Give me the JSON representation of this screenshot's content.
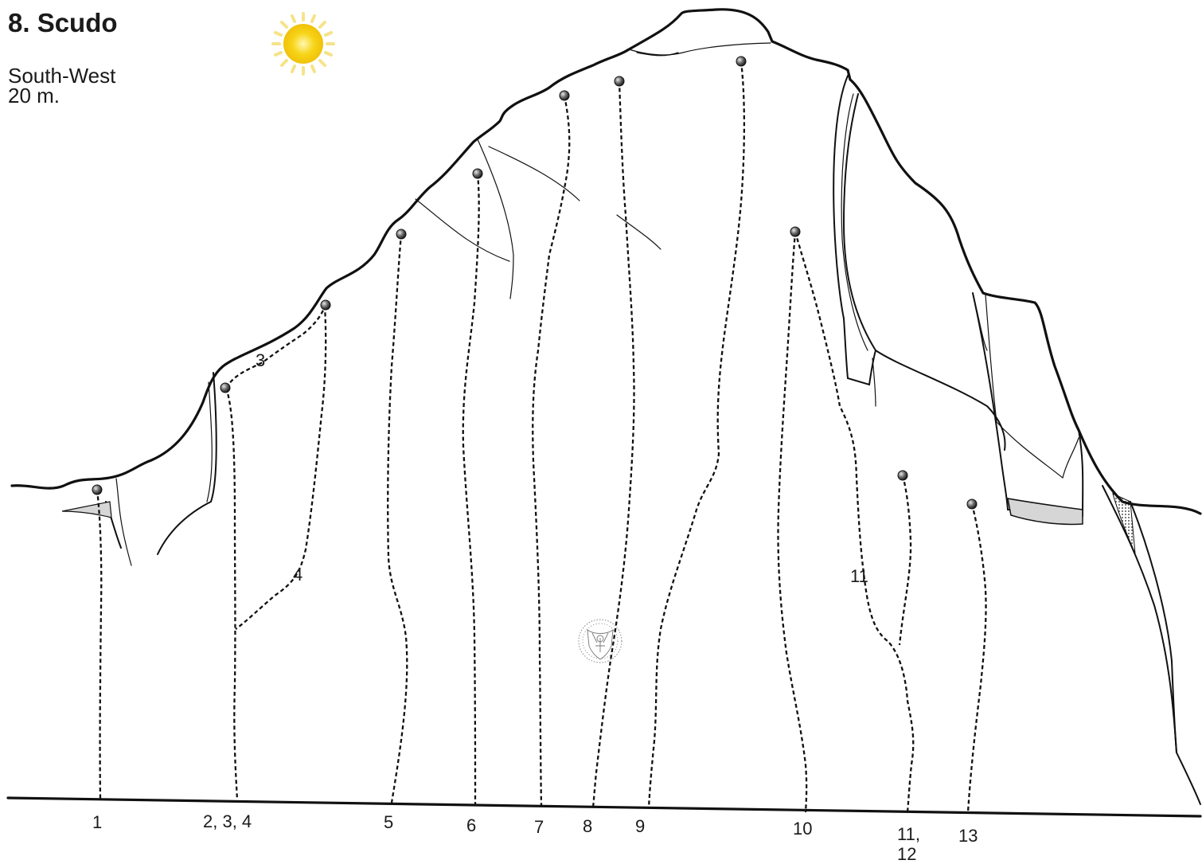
{
  "sector": {
    "title": "8. Scudo",
    "aspect": "South-West",
    "height": "20 m."
  },
  "icons": {
    "sun": "sun-icon",
    "anchor": "belay-anchor-icon",
    "watermark": "crest-emblem-icon"
  },
  "colors": {
    "sun_core": "#f7d417",
    "sun_rays": "#f5e38a",
    "ledge_fill": "#d6d6d6",
    "line": "#111111"
  },
  "routes": [
    {
      "number": "1",
      "base_label": "1"
    },
    {
      "number": "2",
      "base_label": "2, 3, 4"
    },
    {
      "number": "3",
      "base_label": "",
      "inline_label": "3"
    },
    {
      "number": "4",
      "base_label": "",
      "inline_label": "4"
    },
    {
      "number": "5",
      "base_label": "5"
    },
    {
      "number": "6",
      "base_label": "6"
    },
    {
      "number": "7",
      "base_label": "7"
    },
    {
      "number": "8",
      "base_label": "8"
    },
    {
      "number": "9",
      "base_label": "9"
    },
    {
      "number": "10",
      "base_label": "10"
    },
    {
      "number": "11",
      "base_label": "11,\n12",
      "inline_label": "11"
    },
    {
      "number": "12",
      "base_label": ""
    },
    {
      "number": "13",
      "base_label": "13"
    }
  ],
  "base_labels": [
    "1",
    "2, 3, 4",
    "5",
    "6",
    "7",
    "8",
    "9",
    "10",
    "11,",
    "12",
    "13"
  ],
  "inline_labels": [
    "3",
    "4",
    "11"
  ]
}
